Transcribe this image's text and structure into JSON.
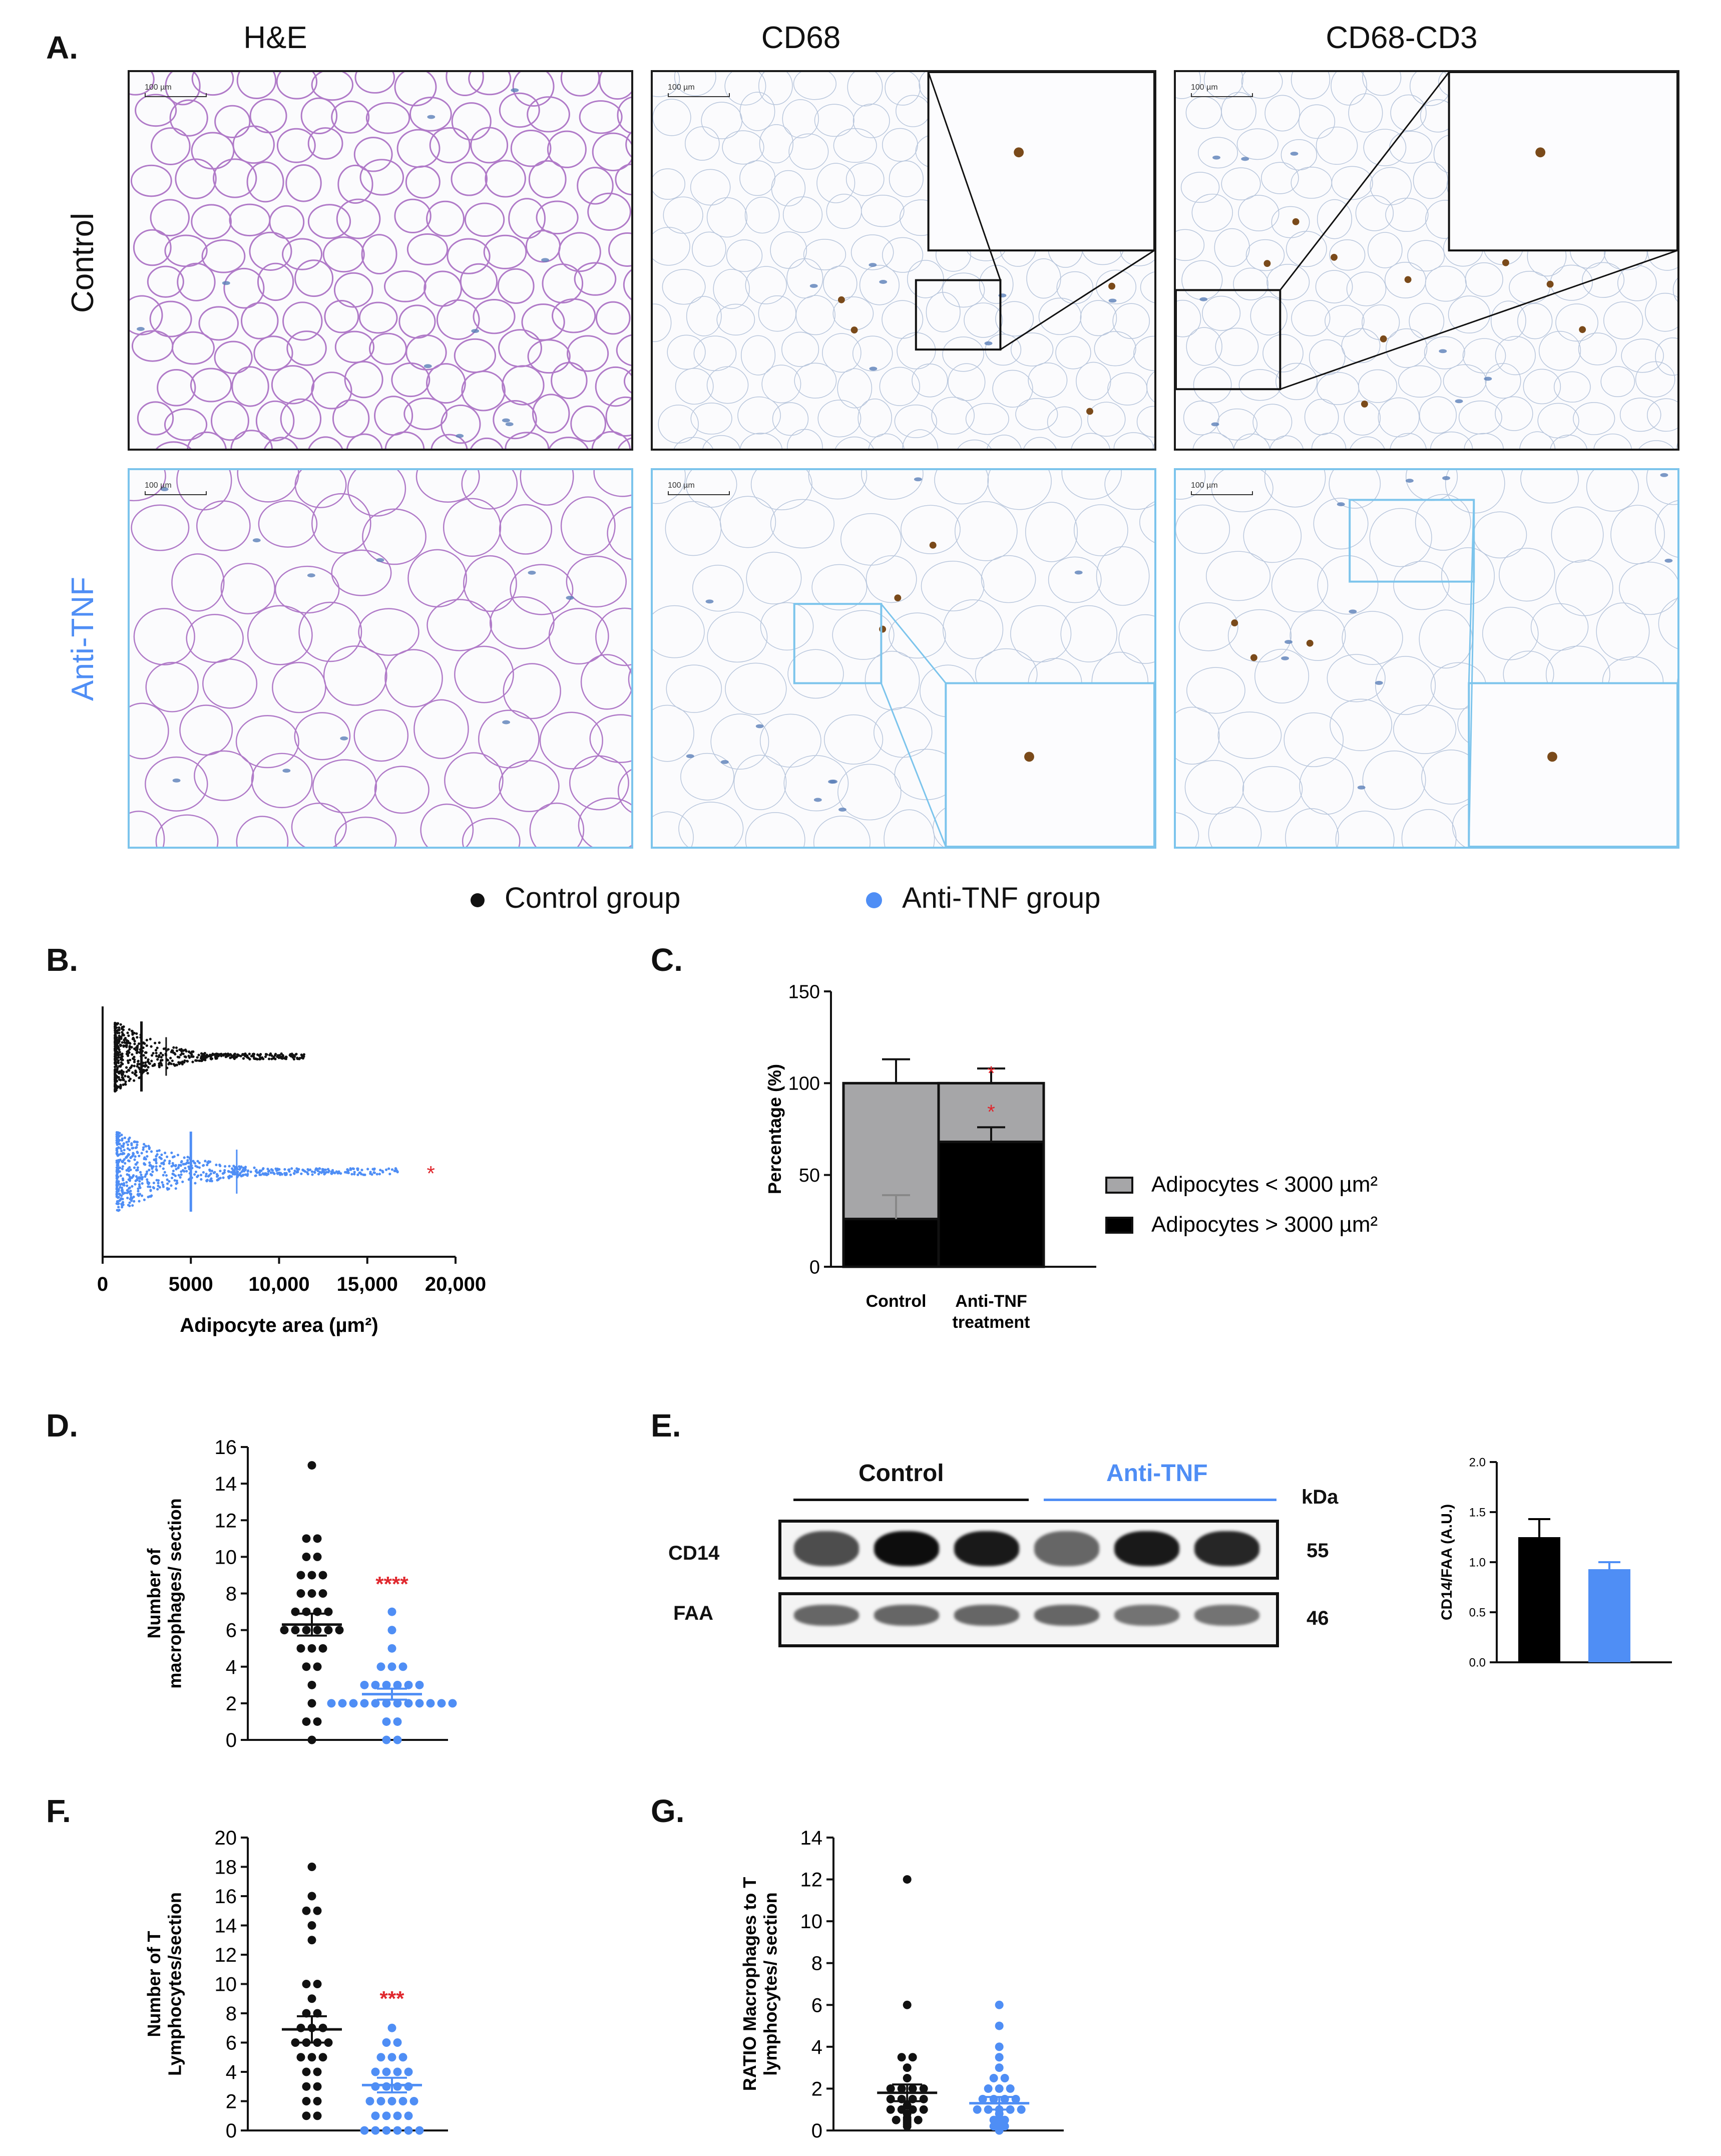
{
  "panel_letters": {
    "a": "A.",
    "b": "B.",
    "c": "C.",
    "d": "D.",
    "e": "E.",
    "f": "F.",
    "g": "G."
  },
  "histology": {
    "columns": [
      "H&E",
      "CD68",
      "CD68-CD3"
    ],
    "rows": [
      "Control",
      "Anti-TNF"
    ],
    "scale_bar": "100 µm",
    "colors": {
      "control_border": "#1a1a1a",
      "anti_tnf_border": "#7cc4ec",
      "he_stain": "#b07ac8",
      "ihc_stain": "#5b7fb8",
      "dab": "#7a4a1a"
    }
  },
  "legend": {
    "control": "Control group",
    "anti_tnf": "Anti-TNF group",
    "control_color": "#111111",
    "anti_tnf_color": "#4f8ef5"
  },
  "chart_data": [
    {
      "panel": "B",
      "type": "scatter",
      "xlabel": "Adipocyte area (µm²)",
      "ylabel": "",
      "xlim": [
        0,
        20000
      ],
      "xticks": [
        0,
        5000,
        10000,
        15000,
        20000
      ],
      "xtick_labels": [
        "0",
        "5000",
        "10,000",
        "15,000",
        "20,000"
      ],
      "series": [
        {
          "group": "control",
          "color": "#111111",
          "min": 700,
          "max": 11500,
          "mean": 2200,
          "sd": 1400
        },
        {
          "group": "anti_tnf",
          "color": "#4f8ef5",
          "min": 800,
          "max": 16800,
          "mean": 5000,
          "sd": 2600
        }
      ],
      "annotations": [
        "*"
      ]
    },
    {
      "panel": "C",
      "type": "bar",
      "ylabel": "Percentage (%)",
      "ylim": [
        0,
        150
      ],
      "yticks": [
        0,
        50,
        100,
        150
      ],
      "categories": [
        "Control",
        "Anti-TNF treatment"
      ],
      "category_lines": [
        [
          "Control"
        ],
        [
          "Anti-TNF",
          "treatment"
        ]
      ],
      "series": [
        {
          "name": "Adipocytes > 3000 µm²",
          "color": "#000000",
          "values": [
            26,
            68
          ],
          "errors": [
            13,
            8
          ]
        },
        {
          "name": "Adipocytes < 3000 µm²",
          "color": "#a6a6a8",
          "values": [
            74,
            32
          ],
          "errors": [
            13,
            8
          ]
        }
      ],
      "legend_order": [
        "Adipocytes < 3000 µm²",
        "Adipocytes > 3000 µm²"
      ],
      "annotations": [
        "*",
        "*"
      ]
    },
    {
      "panel": "D",
      "type": "scatter",
      "ylabel": "Number of macrophages/ section",
      "ylabel_lines": [
        "Number of",
        "macrophages/ section"
      ],
      "ylim": [
        0,
        16
      ],
      "yticks": [
        0,
        2,
        4,
        6,
        8,
        10,
        12,
        14,
        16
      ],
      "groups": [
        {
          "group": "control",
          "color": "#111111",
          "mean": 6.3,
          "sem": 0.6,
          "values": [
            15,
            11,
            11,
            10,
            10,
            9,
            9,
            9,
            8,
            8,
            8,
            7,
            7,
            7,
            7,
            6,
            6,
            6,
            6,
            6,
            6,
            5,
            5,
            5,
            4,
            4,
            3,
            2,
            1,
            1,
            0
          ]
        },
        {
          "group": "anti_tnf",
          "color": "#4f8ef5",
          "mean": 2.5,
          "sem": 0.3,
          "values": [
            7,
            6,
            5,
            4,
            4,
            4,
            3,
            3,
            3,
            3,
            3,
            3,
            2,
            2,
            2,
            2,
            2,
            2,
            2,
            2,
            2,
            2,
            2,
            2,
            1,
            1,
            0,
            0
          ]
        }
      ],
      "significance": "****"
    },
    {
      "panel": "E-blot",
      "type": "table",
      "group_labels": [
        "Control",
        "Anti-TNF"
      ],
      "unit_label": "kDa",
      "rows": [
        {
          "label": "CD14",
          "kda": "55",
          "intensities": [
            0.7,
            0.95,
            0.9,
            0.6,
            0.9,
            0.85
          ]
        },
        {
          "label": "FAA",
          "kda": "46",
          "intensities": [
            0.6,
            0.6,
            0.6,
            0.6,
            0.55,
            0.55
          ]
        }
      ]
    },
    {
      "panel": "E",
      "type": "bar",
      "ylabel": "CD14/FAA (A.U.)",
      "ylim": [
        0,
        2.0
      ],
      "yticks": [
        0.0,
        0.5,
        1.0,
        1.5,
        2.0
      ],
      "ytick_labels": [
        "0.0",
        "0.5",
        "1.0",
        "1.5",
        "2.0"
      ],
      "categories": [
        "Control",
        "Anti-TNF"
      ],
      "values": [
        1.25,
        0.93
      ],
      "errors": [
        0.18,
        0.07
      ],
      "colors": [
        "#000000",
        "#4f8ef5"
      ]
    },
    {
      "panel": "F",
      "type": "scatter",
      "ylabel": "Number of T Lymphocytes/section",
      "ylabel_lines": [
        "Number of T",
        "Lymphocytes/section"
      ],
      "ylim": [
        0,
        20
      ],
      "yticks": [
        0,
        2,
        4,
        6,
        8,
        10,
        12,
        14,
        16,
        18,
        20
      ],
      "groups": [
        {
          "group": "control",
          "color": "#111111",
          "mean": 6.9,
          "sem": 0.9,
          "values": [
            18,
            16,
            15,
            15,
            14,
            13,
            10,
            10,
            9,
            8,
            8,
            7,
            7,
            7,
            6,
            6,
            6,
            6,
            5,
            5,
            5,
            4,
            4,
            3,
            3,
            2,
            2,
            1,
            1
          ]
        },
        {
          "group": "anti_tnf",
          "color": "#4f8ef5",
          "mean": 3.1,
          "sem": 0.5,
          "values": [
            7,
            6,
            6,
            5,
            5,
            5,
            4,
            4,
            4,
            4,
            3,
            3,
            3,
            3,
            2,
            2,
            2,
            2,
            2,
            1,
            1,
            1,
            1,
            0,
            0,
            0,
            0,
            0,
            0
          ]
        }
      ],
      "significance": "***"
    },
    {
      "panel": "G",
      "type": "scatter",
      "ylabel": "RATIO Macrophages to T lymphocytes/ section",
      "ylabel_lines": [
        "RATIO Macrophages to T",
        "lymphocytes/ section"
      ],
      "ylim": [
        0,
        14
      ],
      "yticks": [
        0,
        2,
        4,
        6,
        8,
        10,
        12,
        14
      ],
      "groups": [
        {
          "group": "control",
          "color": "#111111",
          "mean": 1.8,
          "sem": 0.4,
          "values": [
            12,
            6,
            3.5,
            3.5,
            3,
            2.5,
            2,
            2,
            2,
            2,
            1.5,
            1.5,
            1.5,
            1.5,
            1.2,
            1,
            1,
            1,
            1,
            0.8,
            0.6,
            0.5,
            0.5,
            0.5,
            0.4,
            0.3,
            0.2
          ]
        },
        {
          "group": "anti_tnf",
          "color": "#4f8ef5",
          "mean": 1.3,
          "sem": 0.3,
          "values": [
            6,
            5,
            4,
            3.5,
            3,
            2.5,
            2.5,
            2,
            2,
            2,
            1.5,
            1.5,
            1.5,
            1.5,
            1,
            1,
            1,
            1,
            1,
            0.8,
            0.6,
            0.5,
            0.5,
            0.4,
            0.3,
            0.2,
            0.2,
            0
          ]
        }
      ]
    }
  ]
}
